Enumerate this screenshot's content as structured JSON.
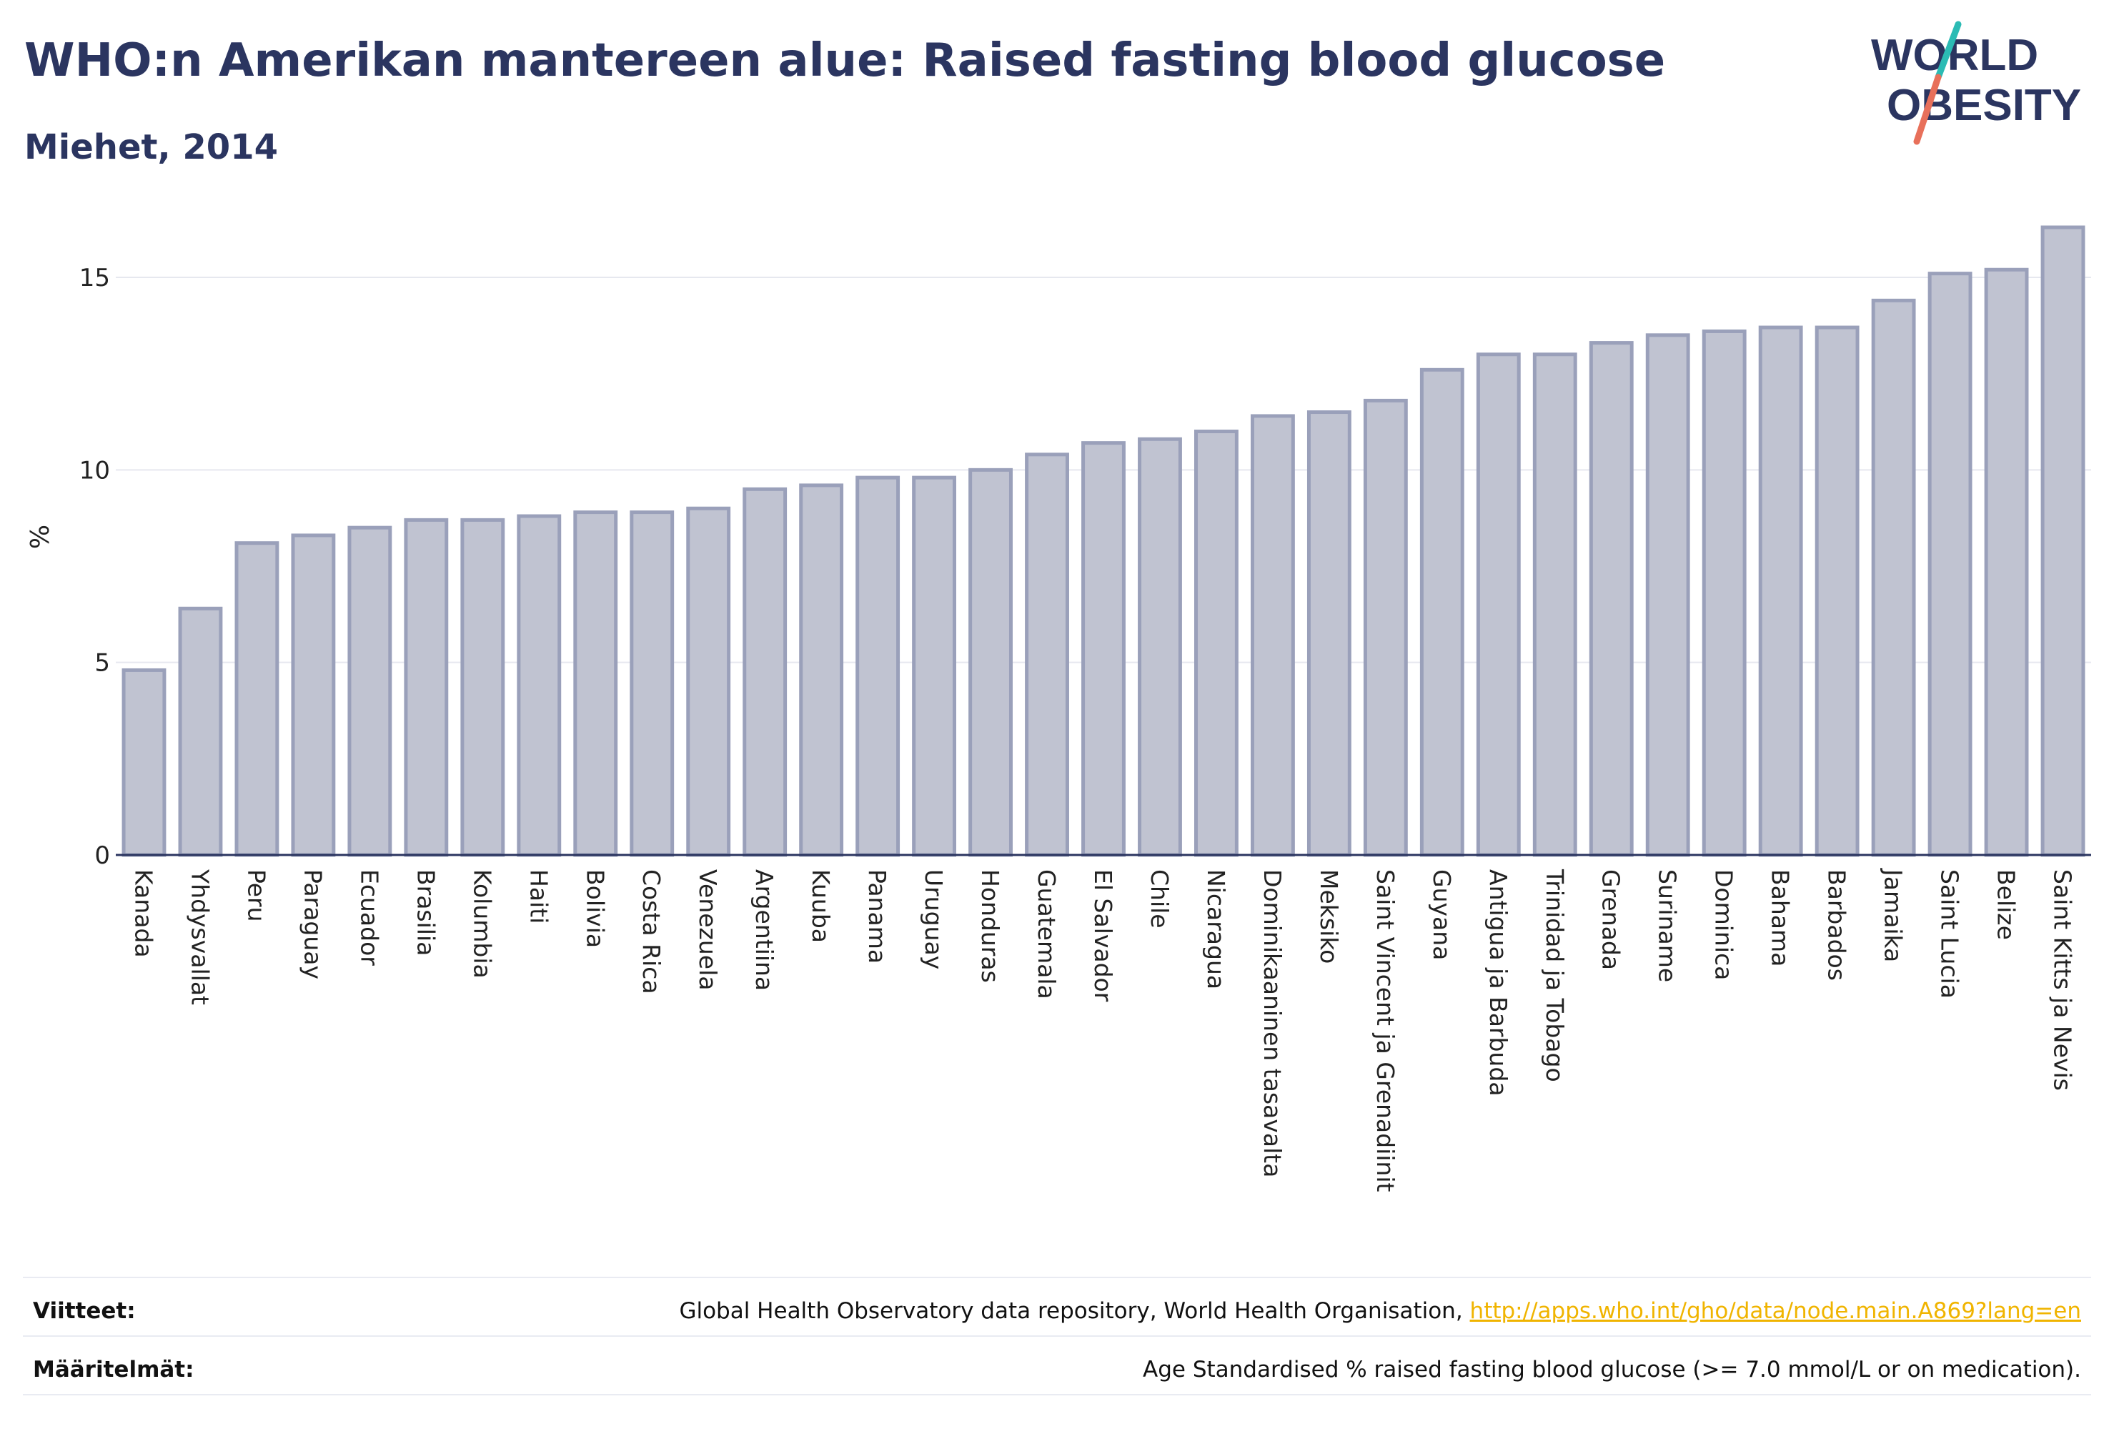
{
  "title": "WHO:n Amerikan mantereen alue: Raised fasting blood glucose",
  "subtitle": "Miehet, 2014",
  "logo": {
    "line1": "WORLD",
    "line2": "OBESITY",
    "accent_teal": "#2bbbb4",
    "accent_red": "#e8705a"
  },
  "colors": {
    "bar_fill": "#c0c3d1",
    "bar_stroke": "#9aa0ba",
    "text": "#2b3560",
    "grid": "#e6e8ef",
    "axis": "#2b3560"
  },
  "chart_data": {
    "type": "bar",
    "ylabel": "%",
    "ylim": [
      0,
      16.3
    ],
    "yticks": [
      0,
      5,
      10,
      15
    ],
    "grid": true,
    "categories": [
      "Kanada",
      "Yhdysvallat",
      "Peru",
      "Paraguay",
      "Ecuador",
      "Brasilia",
      "Kolumbia",
      "Haiti",
      "Bolivia",
      "Costa Rica",
      "Venezuela",
      "Argentiina",
      "Kuuba",
      "Panama",
      "Uruguay",
      "Honduras",
      "Guatemala",
      "El Salvador",
      "Chile",
      "Nicaragua",
      "Dominikaaninen tasavalta",
      "Meksiko",
      "Saint Vincent ja Grenadiinit",
      "Guyana",
      "Antigua ja Barbuda",
      "Trinidad ja Tobago",
      "Grenada",
      "Suriname",
      "Dominica",
      "Bahama",
      "Barbados",
      "Jamaika",
      "Saint Lucia",
      "Belize",
      "Saint Kitts ja Nevis"
    ],
    "values": [
      4.8,
      6.4,
      8.1,
      8.3,
      8.5,
      8.7,
      8.7,
      8.8,
      8.9,
      8.9,
      9.0,
      9.5,
      9.6,
      9.8,
      9.8,
      10.0,
      10.4,
      10.7,
      10.8,
      11.0,
      11.4,
      11.5,
      11.8,
      12.6,
      13.0,
      13.0,
      13.3,
      13.5,
      13.6,
      13.7,
      13.7,
      14.4,
      15.1,
      15.2,
      16.3
    ]
  },
  "footer": {
    "sources_label": "Viitteet:",
    "sources_text": "Global Health Observatory data repository, World Health Organisation,",
    "sources_link": "http://apps.who.int/gho/data/node.main.A869?lang=en",
    "definitions_label": "Määritelmät:",
    "definitions_text": "Age Standardised % raised fasting blood glucose (>= 7.0 mmol/L or on medication)."
  }
}
